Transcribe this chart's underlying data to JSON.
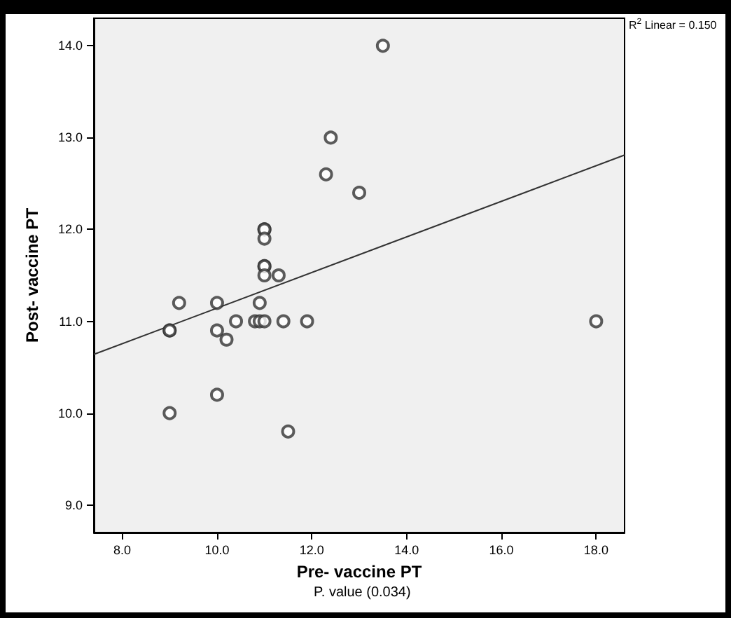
{
  "chart_data": {
    "type": "scatter",
    "xlabel": "Pre- vaccine PT",
    "ylabel": "Post- vaccine PT",
    "annotations": [
      "R$^{2}$ Linear = 0.150",
      "P. value (0.034)"
    ],
    "xlim": [
      7.4,
      18.6
    ],
    "ylim": [
      8.7,
      14.3
    ],
    "xticks": [
      {
        "value": 8,
        "label": "8.0"
      },
      {
        "value": 10,
        "label": "10.0"
      },
      {
        "value": 12,
        "label": "12.0"
      },
      {
        "value": 14,
        "label": "14.0"
      },
      {
        "value": 16,
        "label": "16.0"
      },
      {
        "value": 18,
        "label": "18.0"
      }
    ],
    "yticks": [
      {
        "value": 9,
        "label": "9.0"
      },
      {
        "value": 10,
        "label": "10.0"
      },
      {
        "value": 11,
        "label": "11.0"
      },
      {
        "value": 12,
        "label": "12.0"
      },
      {
        "value": 13,
        "label": "13.0"
      },
      {
        "value": 14,
        "label": "14.0"
      }
    ],
    "grid": false,
    "series": [
      {
        "type": "scatter",
        "marker": "circle",
        "color": "#333333",
        "x": [
          13.5,
          12.4,
          12.3,
          13.0,
          11.0,
          11.0,
          11.0,
          11.0,
          11.0,
          11.0,
          11.3,
          9.2,
          10.0,
          10.9,
          9.0,
          9.0,
          10.0,
          10.4,
          10.2,
          10.8,
          10.9,
          11.0,
          11.4,
          11.9,
          18.0,
          10.0,
          9.0,
          11.5
        ],
        "values": [
          14.0,
          13.0,
          12.6,
          12.4,
          12.0,
          12.0,
          11.9,
          11.6,
          11.6,
          11.5,
          11.5,
          11.2,
          11.2,
          11.2,
          10.9,
          10.9,
          10.9,
          11.0,
          10.8,
          11.0,
          11.0,
          11.0,
          11.0,
          11.0,
          11.0,
          10.2,
          10.0,
          9.8
        ]
      },
      {
        "type": "line",
        "marker": "none",
        "line_style": "solid",
        "color": "#333333",
        "x": [
          7.4,
          18.6
        ],
        "values": [
          10.64,
          12.81
        ]
      }
    ]
  }
}
